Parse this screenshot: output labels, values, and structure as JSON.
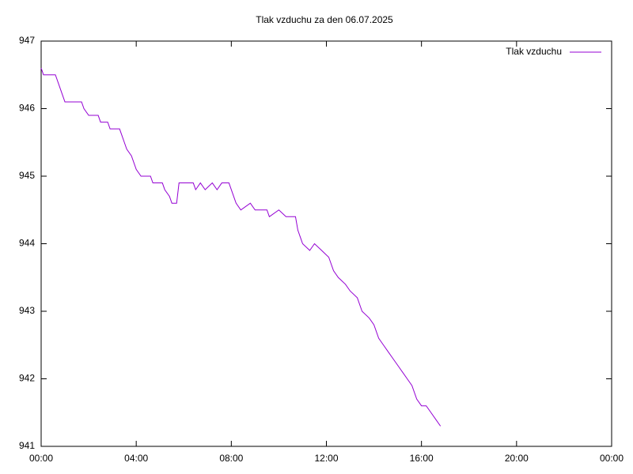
{
  "chart_data": {
    "type": "line",
    "title": "Tlak vzduchu za den 06.07.2025",
    "x": [
      0.0,
      0.1,
      0.6,
      0.8,
      0.9,
      1.0,
      1.7,
      1.8,
      2.0,
      2.4,
      2.5,
      2.8,
      2.9,
      3.3,
      3.4,
      3.5,
      3.6,
      3.8,
      4.0,
      4.2,
      4.6,
      4.7,
      5.1,
      5.2,
      5.4,
      5.5,
      5.7,
      5.8,
      6.4,
      6.5,
      6.7,
      6.9,
      7.2,
      7.4,
      7.6,
      7.9,
      8.0,
      8.2,
      8.4,
      8.8,
      9.0,
      9.5,
      9.6,
      10.0,
      10.3,
      10.7,
      10.8,
      11.0,
      11.3,
      11.5,
      11.8,
      12.1,
      12.3,
      12.5,
      12.8,
      13.0,
      13.3,
      13.5,
      13.8,
      14.0,
      14.2,
      14.4,
      14.6,
      14.8,
      15.0,
      15.2,
      15.4,
      15.6,
      15.8,
      16.0,
      16.2,
      16.4,
      16.6,
      16.8
    ],
    "series": [
      {
        "name": "Tlak vzduchu",
        "color": "#9400d3",
        "values": [
          946.6,
          946.5,
          946.5,
          946.3,
          946.2,
          946.1,
          946.1,
          946.0,
          945.9,
          945.9,
          945.8,
          945.8,
          945.7,
          945.7,
          945.6,
          945.5,
          945.4,
          945.3,
          945.1,
          945.0,
          945.0,
          944.9,
          944.9,
          944.8,
          944.7,
          944.6,
          944.6,
          944.9,
          944.9,
          944.8,
          944.9,
          944.8,
          944.9,
          944.8,
          944.9,
          944.9,
          944.8,
          944.6,
          944.5,
          944.6,
          944.5,
          944.5,
          944.4,
          944.5,
          944.4,
          944.4,
          944.2,
          944.0,
          943.9,
          944.0,
          943.9,
          943.8,
          943.6,
          943.5,
          943.4,
          943.3,
          943.2,
          943.0,
          942.9,
          942.8,
          942.6,
          942.5,
          942.4,
          942.3,
          942.2,
          942.1,
          942.0,
          941.9,
          941.7,
          941.6,
          941.6,
          941.5,
          941.4,
          941.3
        ]
      }
    ],
    "xlim": [
      0,
      24
    ],
    "xticks": [
      {
        "value": 0,
        "label": "00:00"
      },
      {
        "value": 4,
        "label": "04:00"
      },
      {
        "value": 8,
        "label": "08:00"
      },
      {
        "value": 12,
        "label": "12:00"
      },
      {
        "value": 16,
        "label": "16:00"
      },
      {
        "value": 20,
        "label": "20:00"
      },
      {
        "value": 24,
        "label": "00:00"
      }
    ],
    "ylim": [
      941,
      947
    ],
    "yticks": [
      941,
      942,
      943,
      944,
      945,
      946,
      947
    ],
    "legend": "top-right"
  }
}
